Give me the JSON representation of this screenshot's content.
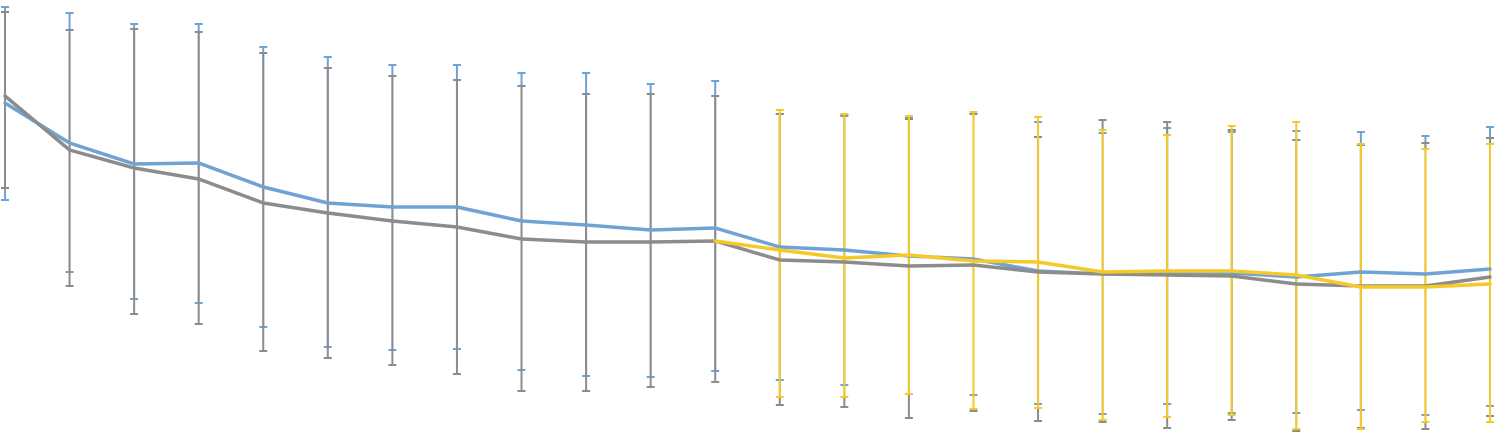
{
  "chart_data": {
    "type": "line",
    "title": "",
    "xlabel": "",
    "ylabel": "",
    "grid": false,
    "legend": "none",
    "x": [
      1,
      2,
      3,
      4,
      5,
      6,
      7,
      8,
      9,
      10,
      11,
      12,
      13,
      14,
      15,
      16,
      17,
      18,
      19,
      20,
      21,
      22,
      23,
      24
    ],
    "ylim": [
      0,
      432
    ],
    "series": [
      {
        "color": "#6fa3d4",
        "values": [
          329,
          289,
          268,
          269,
          245,
          229,
          225,
          225,
          211,
          207,
          202,
          204,
          185,
          182,
          176,
          173,
          161,
          158,
          159,
          159,
          155,
          160,
          158,
          163
        ],
        "err_upper": [
          425,
          419,
          408,
          408,
          385,
          375,
          367,
          367,
          359,
          359,
          348,
          351,
          318,
          316,
          314,
          318,
          310,
          299,
          304,
          300,
          301,
          300,
          296,
          305
        ],
        "err_lower": [
          232,
          160,
          133,
          129,
          105,
          85,
          82,
          83,
          62,
          56,
          55,
          61,
          52,
          47,
          38,
          37,
          28,
          18,
          28,
          19,
          19,
          22,
          17,
          26
        ]
      },
      {
        "color": "#8c8c8c",
        "values": [
          336,
          282,
          264,
          253,
          229,
          219,
          211,
          205,
          193,
          190,
          190,
          191,
          172,
          170,
          166,
          167,
          160,
          158,
          157,
          156,
          148,
          146,
          146,
          155
        ],
        "err_upper": [
          420,
          402,
          403,
          400,
          379,
          364,
          356,
          352,
          346,
          338,
          338,
          336,
          318,
          317,
          313,
          318,
          295,
          312,
          310,
          302,
          292,
          287,
          289,
          294
        ],
        "err_lower": [
          244,
          146,
          118,
          108,
          81,
          74,
          67,
          58,
          41,
          41,
          45,
          50,
          27,
          25,
          14,
          21,
          11,
          10,
          4,
          12,
          1,
          4,
          3,
          16
        ]
      },
      {
        "color": "#f5c928",
        "values": [
          null,
          null,
          null,
          null,
          null,
          null,
          null,
          null,
          null,
          null,
          null,
          191,
          182,
          174,
          177,
          171,
          170,
          160,
          161,
          161,
          157,
          145,
          145,
          148
        ],
        "err_upper": [
          null,
          null,
          null,
          null,
          null,
          null,
          null,
          null,
          null,
          null,
          null,
          null,
          322,
          318,
          316,
          320,
          315,
          302,
          297,
          306,
          310,
          288,
          283,
          288
        ],
        "err_lower": [
          null,
          null,
          null,
          null,
          null,
          null,
          null,
          null,
          null,
          null,
          null,
          null,
          35,
          35,
          38,
          23,
          24,
          12,
          15,
          17,
          3,
          3,
          10,
          10
        ]
      }
    ]
  }
}
